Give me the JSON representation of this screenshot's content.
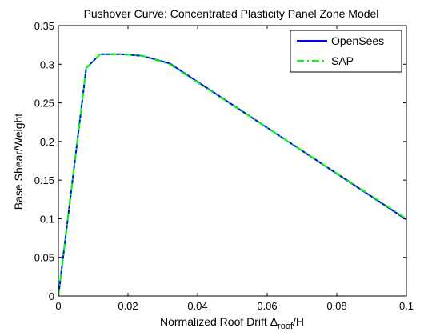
{
  "chart_data": {
    "type": "line",
    "title": "Pushover Curve:  Concentrated Plasticity Panel Zone Model",
    "xlabel_prefix": "Normalized Roof Drift ",
    "xlabel_delta": "Δ",
    "xlabel_sub": "roof",
    "xlabel_suffix": "/H",
    "ylabel": "Base Shear/Weight",
    "xlim": [
      0,
      0.1
    ],
    "ylim": [
      0,
      0.35
    ],
    "xticks": [
      0,
      0.02,
      0.04,
      0.06,
      0.08,
      0.1
    ],
    "xtick_labels": [
      "0",
      "0.02",
      "0.04",
      "0.06",
      "0.08",
      "0.1"
    ],
    "yticks": [
      0,
      0.05,
      0.1,
      0.15,
      0.2,
      0.25,
      0.3,
      0.35
    ],
    "ytick_labels": [
      "0",
      "0.05",
      "0.1",
      "0.15",
      "0.2",
      "0.25",
      "0.3",
      "0.35"
    ],
    "grid": false,
    "legend_position": "top-right",
    "series": [
      {
        "name": "OpenSees",
        "color": "#0000ff",
        "style": "solid",
        "x": [
          0,
          0.008,
          0.012,
          0.018,
          0.024,
          0.032,
          0.1
        ],
        "y": [
          0,
          0.295,
          0.313,
          0.313,
          0.311,
          0.301,
          0.099
        ]
      },
      {
        "name": "SAP",
        "color": "#00ff00",
        "style": "dashdot",
        "x": [
          0,
          0.008,
          0.012,
          0.018,
          0.024,
          0.032,
          0.1
        ],
        "y": [
          0,
          0.295,
          0.313,
          0.313,
          0.311,
          0.3,
          0.1
        ]
      }
    ]
  }
}
